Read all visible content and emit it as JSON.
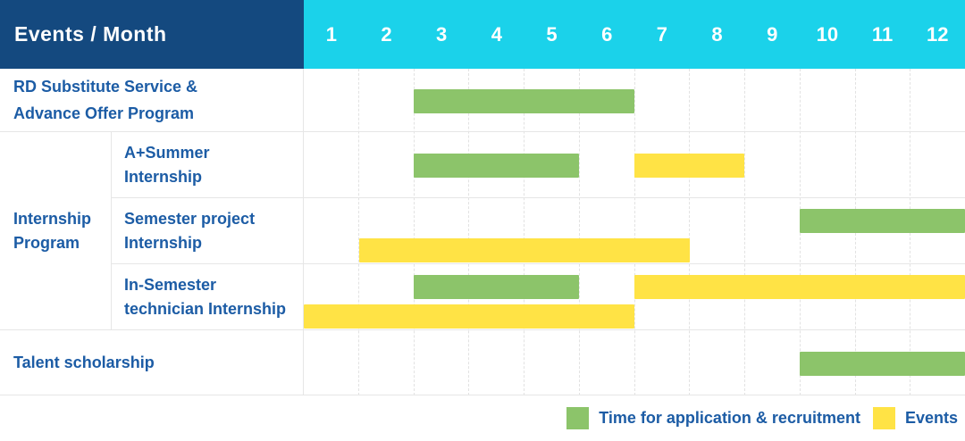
{
  "header": {
    "title": "Events / Month",
    "months": [
      "1",
      "2",
      "3",
      "4",
      "5",
      "6",
      "7",
      "8",
      "9",
      "10",
      "11",
      "12"
    ]
  },
  "colors": {
    "header_bg": "#14497F",
    "month_header_bg": "#1BD2EA",
    "label_text": "#1C5CA5",
    "green": "#8CC46A",
    "yellow": "#FFE345",
    "grid_line": "#E2E2E2"
  },
  "legend": [
    {
      "label": "Time for application & recruitment",
      "color": "green"
    },
    {
      "label": "Events",
      "color": "yellow"
    }
  ],
  "chart_data": {
    "type": "gantt",
    "title": "Events / Month",
    "x_unit": "month",
    "x_range": [
      1,
      12
    ],
    "grid": "dashed-vertical-month-lines",
    "legend_position": "bottom-right",
    "legend": {
      "green": "Time for application & recruitment",
      "yellow": "Events"
    },
    "group_label_lines": [
      "Internship",
      "Program"
    ],
    "rows": [
      {
        "group": null,
        "label": "RD Substitute Service & Advance Offer Program",
        "lines": [
          "RD Substitute Service &",
          "Advance Offer Program"
        ],
        "bars": [
          {
            "color": "green",
            "meaning": "Time for application & recruitment",
            "start_month": 3,
            "end_month": 6,
            "track": "center"
          }
        ]
      },
      {
        "group": "Internship Program",
        "label": "A+Summer Internship",
        "lines": [
          "A+Summer",
          "Internship"
        ],
        "bars": [
          {
            "color": "green",
            "meaning": "Time for application & recruitment",
            "start_month": 3,
            "end_month": 5,
            "track": "center"
          },
          {
            "color": "yellow",
            "meaning": "Events",
            "start_month": 7,
            "end_month": 8,
            "track": "center"
          }
        ]
      },
      {
        "group": "Internship Program",
        "label": "Semester project Internship",
        "lines": [
          "Semester project",
          "Internship"
        ],
        "bars": [
          {
            "color": "green",
            "meaning": "Time for application & recruitment",
            "start_month": 10,
            "end_month": 12,
            "track": "top"
          },
          {
            "color": "yellow",
            "meaning": "Events",
            "start_month": 2,
            "end_month": 7,
            "track": "bottom"
          }
        ]
      },
      {
        "group": "Internship Program",
        "label": "In-Semester technician Internship",
        "lines": [
          "In-Semester",
          "technician Internship"
        ],
        "bars": [
          {
            "color": "green",
            "meaning": "Time for application & recruitment",
            "start_month": 3,
            "end_month": 5,
            "track": "top"
          },
          {
            "color": "yellow",
            "meaning": "Events",
            "start_month": 7,
            "end_month": 12,
            "track": "top"
          },
          {
            "color": "yellow",
            "meaning": "Events",
            "start_month": 1,
            "end_month": 6,
            "track": "bottom"
          }
        ]
      },
      {
        "group": null,
        "label": "Talent scholarship",
        "lines": [
          "Talent scholarship"
        ],
        "bars": [
          {
            "color": "green",
            "meaning": "Time for application & recruitment",
            "start_month": 10,
            "end_month": 12,
            "track": "center"
          }
        ]
      }
    ]
  }
}
